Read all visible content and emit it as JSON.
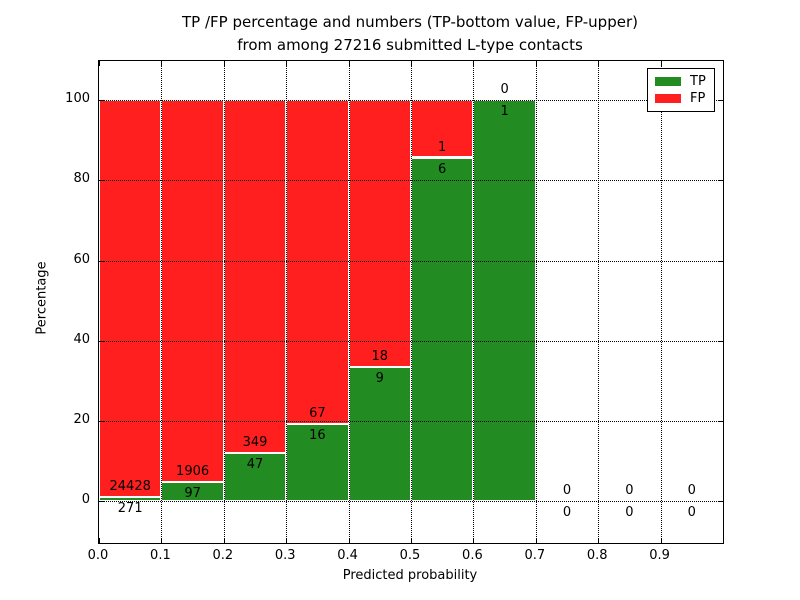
{
  "title": {
    "line1": "TP /FP percentage and numbers (TP-bottom value, FP-upper)",
    "line2": "from among 27216 submitted L-type contacts"
  },
  "axes": {
    "xlabel": "Predicted probability",
    "ylabel": "Percentage",
    "x_ticks": [
      "0.0",
      "0.1",
      "0.2",
      "0.3",
      "0.4",
      "0.5",
      "0.6",
      "0.7",
      "0.8",
      "0.9"
    ],
    "y_ticks": [
      "0",
      "20",
      "40",
      "60",
      "80",
      "100"
    ]
  },
  "legend": [
    {
      "label": "TP",
      "color": "#228b22"
    },
    {
      "label": "FP",
      "color": "#ff1f1f"
    }
  ],
  "colors": {
    "tp": "#228b22",
    "fp": "#ff1f1f",
    "grid": "#000000",
    "frame": "#000000",
    "background": "#ffffff"
  },
  "chart_data": {
    "type": "bar",
    "stacked": true,
    "normalized_to_percent": true,
    "title": "TP /FP percentage and numbers (TP-bottom value, FP-upper) from among 27216 submitted L-type contacts",
    "xlabel": "Predicted probability",
    "ylabel": "Percentage",
    "total_contacts": 27216,
    "xlim": [
      0.0,
      1.0
    ],
    "ylim": [
      -10.5,
      109.8
    ],
    "grid": true,
    "grid_style": "dotted",
    "legend_position": "upper right",
    "label_scheme": "TP count below stack boundary, FP count above stack boundary",
    "bins": [
      {
        "range": [
          0.0,
          0.1
        ],
        "tp": 271,
        "fp": 24428,
        "tp_percent": 1.1,
        "fp_percent": 98.9
      },
      {
        "range": [
          0.1,
          0.2
        ],
        "tp": 97,
        "fp": 1906,
        "tp_percent": 4.8,
        "fp_percent": 95.2
      },
      {
        "range": [
          0.2,
          0.3
        ],
        "tp": 47,
        "fp": 349,
        "tp_percent": 11.9,
        "fp_percent": 88.1
      },
      {
        "range": [
          0.3,
          0.4
        ],
        "tp": 16,
        "fp": 67,
        "tp_percent": 19.3,
        "fp_percent": 80.7
      },
      {
        "range": [
          0.4,
          0.5
        ],
        "tp": 9,
        "fp": 18,
        "tp_percent": 33.3,
        "fp_percent": 66.7
      },
      {
        "range": [
          0.5,
          0.6
        ],
        "tp": 6,
        "fp": 1,
        "tp_percent": 85.7,
        "fp_percent": 14.3
      },
      {
        "range": [
          0.6,
          0.7
        ],
        "tp": 1,
        "fp": 0,
        "tp_percent": 100.0,
        "fp_percent": 0.0
      },
      {
        "range": [
          0.7,
          0.8
        ],
        "tp": 0,
        "fp": 0,
        "tp_percent": null,
        "fp_percent": null
      },
      {
        "range": [
          0.8,
          0.9
        ],
        "tp": 0,
        "fp": 0,
        "tp_percent": null,
        "fp_percent": null
      },
      {
        "range": [
          0.9,
          1.0
        ],
        "tp": 0,
        "fp": 0,
        "tp_percent": null,
        "fp_percent": null
      }
    ]
  }
}
